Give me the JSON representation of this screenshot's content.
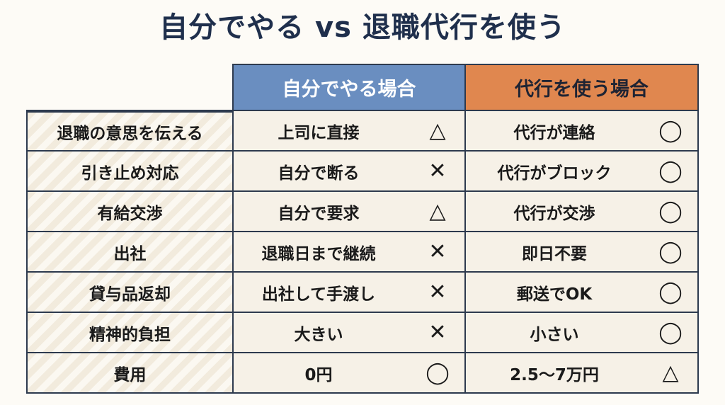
{
  "title": "自分でやる vs 退職代行を使う",
  "headers": {
    "self": "自分でやる場合",
    "agent": "代行を使う場合"
  },
  "rows": [
    {
      "label": "退職の意思を伝える",
      "self": "上司に直接",
      "self_mark": "△",
      "agent": "代行が連絡",
      "agent_mark": "◯"
    },
    {
      "label": "引き止め対応",
      "self": "自分で断る",
      "self_mark": "✕",
      "agent": "代行がブロック",
      "agent_mark": "◯"
    },
    {
      "label": "有給交渉",
      "self": "自分で要求",
      "self_mark": "△",
      "agent": "代行が交渉",
      "agent_mark": "◯"
    },
    {
      "label": "出社",
      "self": "退職日まで継続",
      "self_mark": "✕",
      "agent": "即日不要",
      "agent_mark": "◯"
    },
    {
      "label": "貸与品返却",
      "self": "出社して手渡し",
      "self_mark": "✕",
      "agent": "郵送でOK",
      "agent_mark": "◯"
    },
    {
      "label": "精神的負担",
      "self": "大きい",
      "self_mark": "✕",
      "agent": "小さい",
      "agent_mark": "◯"
    },
    {
      "label": "費用",
      "self": "0円",
      "self_mark": "◯",
      "agent": "2.5〜7万円",
      "agent_mark": "△"
    }
  ],
  "colors": {
    "title": "#1f2f4c",
    "self_header": "#6a8ec0",
    "agent_header": "#e0874f",
    "cell_bg": "#f6f1e7"
  }
}
